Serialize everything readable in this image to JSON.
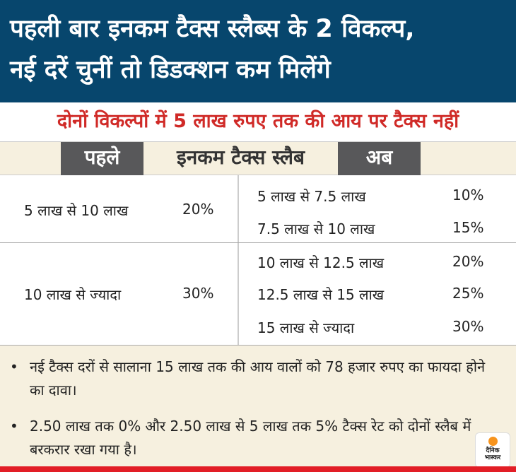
{
  "header": {
    "line1": "पहली बार इनकम टैक्स स्लैब्स के 2 विकल्प,",
    "line2": "नई दरें चुनीं तो डिडक्शन कम मिलेंगे"
  },
  "subtitle": "दोनों विकल्पों में 5 लाख रुपए तक की आय पर टैक्स नहीं",
  "table_header": {
    "before": "पहले",
    "title": "इनकम टैक्स स्लैब",
    "now": "अब"
  },
  "old": [
    {
      "range": "5 लाख से 10 लाख",
      "rate": "20%"
    },
    {
      "range": "10 लाख से ज्यादा",
      "rate": "30%"
    }
  ],
  "new": [
    {
      "range": "5 लाख से 7.5 लाख",
      "rate": "10%"
    },
    {
      "range": "7.5 लाख से 10 लाख",
      "rate": "15%"
    },
    {
      "range": "10 लाख से 12.5 लाख",
      "rate": "20%"
    },
    {
      "range": "12.5 लाख से 15 लाख",
      "rate": "25%"
    },
    {
      "range": "15 लाख से ज्यादा",
      "rate": "30%"
    }
  ],
  "notes": [
    "नई टैक्स दरों से सालाना 15 लाख तक की आय वालों को 78 हजार रुपए का फायदा होने का दावा।",
    "2.50 लाख तक 0% और 2.50 लाख से 5 लाख तक 5% टैक्स रेट को दोनों स्लैब में बरकरार रखा गया है।"
  ],
  "logo": {
    "line1": "दैनिक",
    "line2": "भास्कर"
  },
  "colors": {
    "header": "#07466d",
    "subtitle": "#d02a27",
    "band": "#f6f0df",
    "dark": "#58585a",
    "accent": "#e21e26"
  }
}
